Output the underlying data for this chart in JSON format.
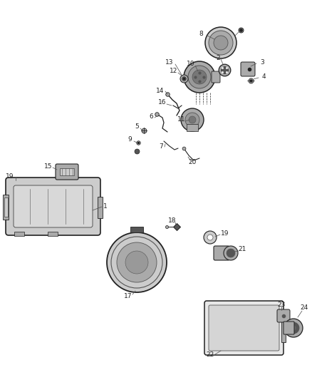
{
  "background_color": "#ffffff",
  "figsize": [
    4.38,
    5.33
  ],
  "dpi": 100,
  "gray1": "#222222",
  "gray2": "#555555",
  "gray3": "#888888",
  "gray4": "#bbbbbb",
  "gray5": "#dddddd"
}
